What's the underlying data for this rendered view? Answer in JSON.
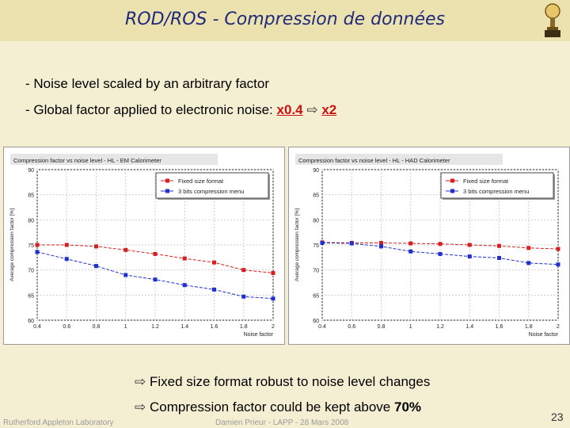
{
  "slide": {
    "title": "ROD/ROS - Compression de données",
    "bullet1": "- Noise level scaled by an arbitrary factor",
    "bullet2_prefix": "- Global factor applied to electronic noise:",
    "bullet2_value1": "x0.4",
    "bullet2_arrow": "⇨",
    "bullet2_value2": "x2",
    "conclusion1": "Fixed size format robust to noise level changes",
    "conclusion2_prefix": "Compression factor could be kept above",
    "conclusion2_value": "70%",
    "footer_left": "Rutherford Appleton Laboratory",
    "footer_center": "Damien Prieur - LAPP - 28 Mars 2008",
    "page_number": "23"
  },
  "colors": {
    "red_series": "#d42020",
    "blue_series": "#1f2fd0",
    "title": "#1f2a7a"
  },
  "chart_data": [
    {
      "type": "line",
      "title": "Compression factor vs noise level - HL - EM Calorimeter",
      "xlabel": "Noise factor",
      "ylabel": "Average compression factor [%]",
      "x": [
        0.4,
        0.6,
        0.8,
        1,
        1.2,
        1.4,
        1.6,
        1.8,
        2
      ],
      "xlim": [
        0.4,
        2
      ],
      "ylim": [
        60,
        90
      ],
      "x_ticks": [
        "0.4",
        "0.6",
        "0.8",
        "1",
        "1.2",
        "1.4",
        "1.6",
        "1.8",
        "2"
      ],
      "y_ticks": [
        "60",
        "65",
        "70",
        "75",
        "80",
        "85",
        "90"
      ],
      "grid": true,
      "legend_position": "top-right",
      "series": [
        {
          "name": "Fixed size format",
          "color": "#d42020",
          "values": [
            75.0,
            75.0,
            74.7,
            74.0,
            73.2,
            72.3,
            71.5,
            70.0,
            69.4
          ]
        },
        {
          "name": "3 bits compression menu",
          "color": "#1f2fd0",
          "values": [
            73.6,
            72.2,
            70.8,
            69.0,
            68.1,
            67.0,
            66.1,
            64.7,
            64.3
          ]
        }
      ]
    },
    {
      "type": "line",
      "title": "Compression factor vs noise level - HL - HAD Calorimeter",
      "xlabel": "Noise factor",
      "ylabel": "Average compression factor [%]",
      "x": [
        0.4,
        0.6,
        0.8,
        1,
        1.2,
        1.4,
        1.6,
        1.8,
        2
      ],
      "xlim": [
        0.4,
        2
      ],
      "ylim": [
        60,
        90
      ],
      "x_ticks": [
        "0.4",
        "0.6",
        "0.8",
        "1",
        "1.2",
        "1.4",
        "1.6",
        "1.8",
        "2"
      ],
      "y_ticks": [
        "60",
        "65",
        "70",
        "75",
        "80",
        "85",
        "90"
      ],
      "grid": true,
      "legend_position": "top-right",
      "series": [
        {
          "name": "Fixed size format",
          "color": "#d42020",
          "values": [
            75.5,
            75.4,
            75.4,
            75.3,
            75.2,
            75.0,
            74.8,
            74.4,
            74.2
          ]
        },
        {
          "name": "3 bits compression menu",
          "color": "#1f2fd0",
          "values": [
            75.4,
            75.3,
            74.7,
            73.7,
            73.2,
            72.7,
            72.4,
            71.4,
            71.1
          ]
        }
      ]
    }
  ]
}
